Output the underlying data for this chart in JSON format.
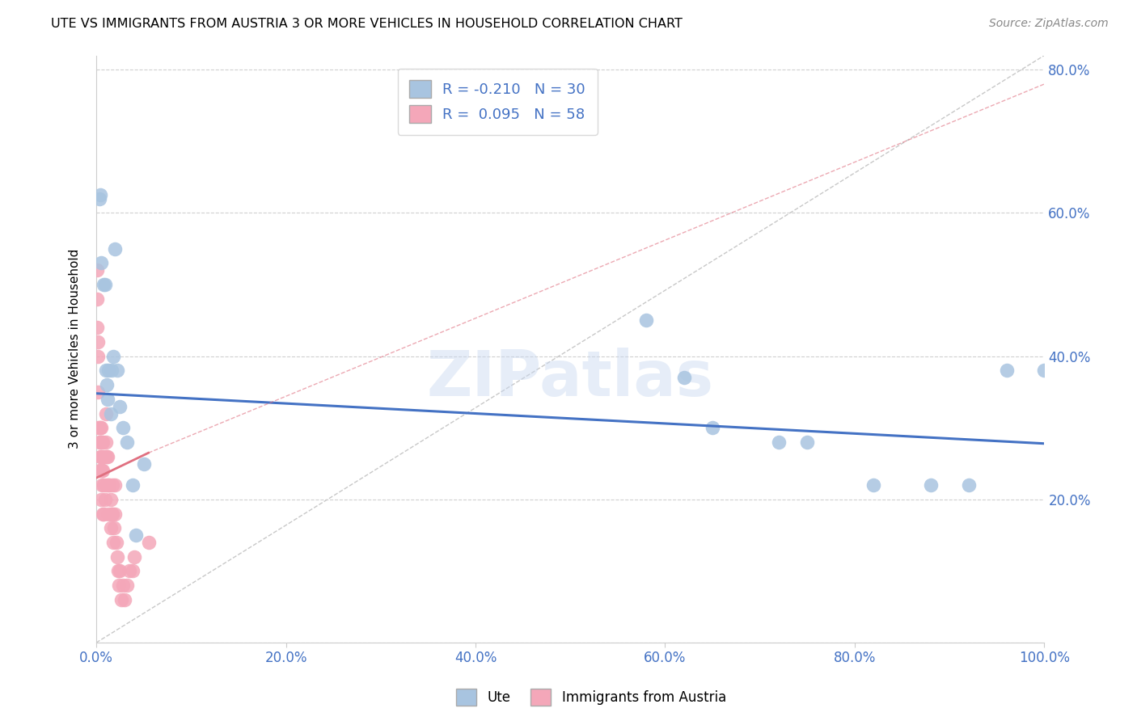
{
  "title": "UTE VS IMMIGRANTS FROM AUSTRIA 3 OR MORE VEHICLES IN HOUSEHOLD CORRELATION CHART",
  "source": "Source: ZipAtlas.com",
  "ylabel": "3 or more Vehicles in Household",
  "watermark": "ZIPatlas",
  "legend_ute": "Ute",
  "legend_austria": "Immigrants from Austria",
  "R_ute": -0.21,
  "N_ute": 30,
  "R_austria": 0.095,
  "N_austria": 58,
  "ute_color": "#a8c4e0",
  "austria_color": "#f4a7b9",
  "ute_line_color": "#4472c4",
  "austria_line_color": "#e07080",
  "diagonal_color": "#c8c8c8",
  "background_color": "#ffffff",
  "ute_x": [
    0.003,
    0.004,
    0.005,
    0.008,
    0.009,
    0.01,
    0.011,
    0.012,
    0.013,
    0.015,
    0.016,
    0.018,
    0.02,
    0.022,
    0.025,
    0.028,
    0.032,
    0.038,
    0.042,
    0.05,
    0.58,
    0.62,
    0.65,
    0.72,
    0.75,
    0.82,
    0.88,
    0.92,
    0.96,
    1.0
  ],
  "ute_y": [
    0.62,
    0.625,
    0.53,
    0.5,
    0.5,
    0.38,
    0.36,
    0.34,
    0.38,
    0.32,
    0.38,
    0.4,
    0.55,
    0.38,
    0.33,
    0.3,
    0.28,
    0.22,
    0.15,
    0.25,
    0.45,
    0.37,
    0.3,
    0.28,
    0.28,
    0.22,
    0.22,
    0.22,
    0.38,
    0.38
  ],
  "austria_x": [
    0.001,
    0.001,
    0.001,
    0.002,
    0.002,
    0.002,
    0.002,
    0.003,
    0.003,
    0.003,
    0.004,
    0.004,
    0.004,
    0.005,
    0.005,
    0.005,
    0.005,
    0.006,
    0.006,
    0.006,
    0.007,
    0.007,
    0.007,
    0.008,
    0.008,
    0.008,
    0.009,
    0.009,
    0.01,
    0.01,
    0.011,
    0.011,
    0.012,
    0.013,
    0.013,
    0.014,
    0.015,
    0.015,
    0.016,
    0.017,
    0.017,
    0.018,
    0.019,
    0.02,
    0.02,
    0.021,
    0.022,
    0.023,
    0.024,
    0.025,
    0.026,
    0.028,
    0.03,
    0.032,
    0.035,
    0.038,
    0.04,
    0.055
  ],
  "austria_y": [
    0.52,
    0.48,
    0.44,
    0.42,
    0.4,
    0.35,
    0.3,
    0.3,
    0.28,
    0.24,
    0.3,
    0.28,
    0.26,
    0.3,
    0.26,
    0.24,
    0.2,
    0.28,
    0.24,
    0.22,
    0.28,
    0.24,
    0.18,
    0.26,
    0.22,
    0.18,
    0.26,
    0.2,
    0.32,
    0.28,
    0.26,
    0.22,
    0.26,
    0.22,
    0.18,
    0.22,
    0.2,
    0.16,
    0.18,
    0.22,
    0.18,
    0.14,
    0.16,
    0.22,
    0.18,
    0.14,
    0.12,
    0.1,
    0.08,
    0.1,
    0.06,
    0.08,
    0.06,
    0.08,
    0.1,
    0.1,
    0.12,
    0.14
  ],
  "xlim": [
    0.0,
    1.0
  ],
  "ylim": [
    0.0,
    0.82
  ],
  "xticks": [
    0.0,
    0.2,
    0.4,
    0.6,
    0.8,
    1.0
  ],
  "xtick_labels": [
    "0.0%",
    "20.0%",
    "40.0%",
    "60.0%",
    "80.0%",
    "100.0%"
  ],
  "yticks": [
    0.0,
    0.2,
    0.4,
    0.6,
    0.8
  ],
  "ytick_labels_right": [
    "",
    "20.0%",
    "40.0%",
    "60.0%",
    "80.0%"
  ]
}
